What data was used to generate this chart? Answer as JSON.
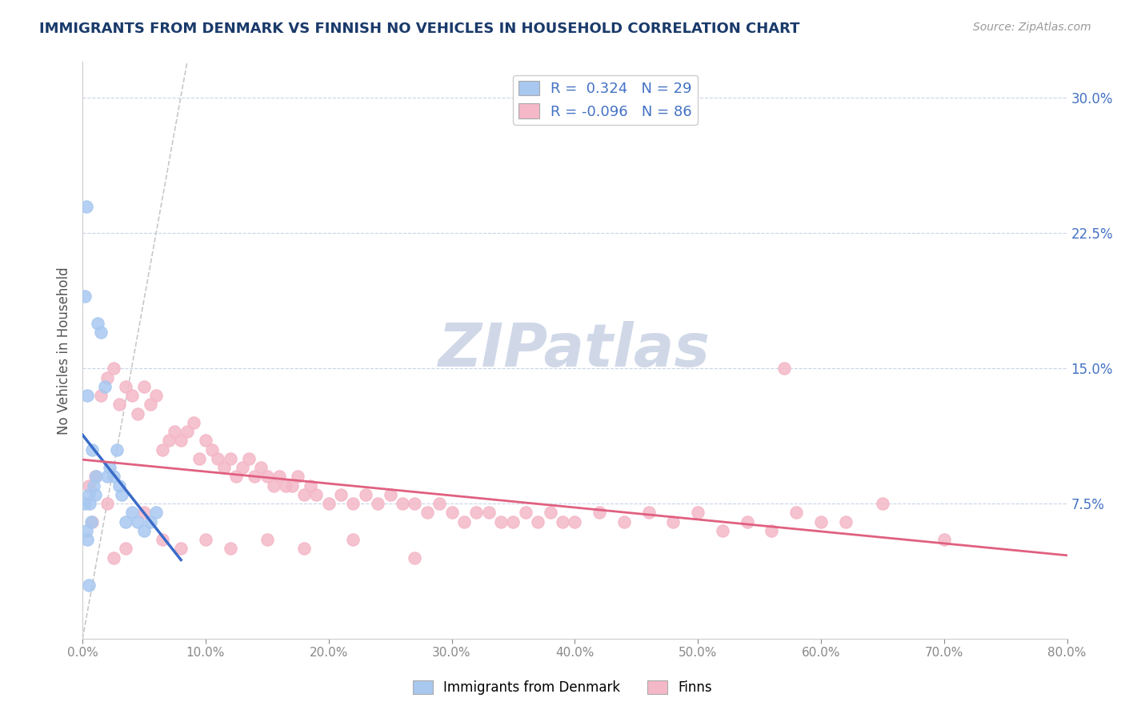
{
  "title": "IMMIGRANTS FROM DENMARK VS FINNISH NO VEHICLES IN HOUSEHOLD CORRELATION CHART",
  "source": "Source: ZipAtlas.com",
  "ylabel": "No Vehicles in Household",
  "x_tick_labels": [
    "0.0%",
    "10.0%",
    "20.0%",
    "30.0%",
    "40.0%",
    "50.0%",
    "60.0%",
    "70.0%",
    "80.0%"
  ],
  "x_tick_vals": [
    0.0,
    10.0,
    20.0,
    30.0,
    40.0,
    50.0,
    60.0,
    70.0,
    80.0
  ],
  "y_tick_labels": [
    "7.5%",
    "15.0%",
    "22.5%",
    "30.0%"
  ],
  "y_tick_vals": [
    7.5,
    15.0,
    22.5,
    30.0
  ],
  "xlim": [
    0,
    80
  ],
  "ylim": [
    0,
    32
  ],
  "R_blue": 0.324,
  "N_blue": 29,
  "R_pink": -0.096,
  "N_pink": 86,
  "blue_scatter_color": "#a8c8f0",
  "pink_scatter_color": "#f4b8c8",
  "blue_line_color": "#3a6bc8",
  "pink_line_color": "#e06080",
  "diag_line_color": "#c8c8c8",
  "watermark": "ZIPatlas",
  "watermark_color": "#d0d8e8",
  "legend_label_color": "#4472c4",
  "blue_x": [
    0.3,
    0.4,
    1.2,
    1.5,
    1.8,
    2.0,
    2.2,
    2.5,
    2.8,
    3.0,
    3.2,
    3.5,
    4.0,
    4.5,
    5.0,
    5.5,
    6.0,
    0.5,
    0.8,
    1.0,
    0.2,
    0.6,
    0.9,
    1.1,
    0.7,
    0.3,
    0.4,
    0.2,
    0.5
  ],
  "blue_y": [
    24.0,
    13.5,
    17.5,
    17.0,
    14.0,
    9.0,
    9.5,
    9.0,
    10.5,
    8.5,
    8.0,
    6.5,
    7.0,
    6.5,
    6.0,
    6.5,
    7.0,
    8.0,
    10.5,
    8.0,
    19.0,
    7.5,
    8.5,
    9.0,
    6.5,
    6.0,
    5.5,
    7.5,
    3.0
  ],
  "pink_x": [
    0.5,
    1.0,
    1.5,
    2.0,
    2.5,
    3.0,
    3.5,
    4.0,
    4.5,
    5.0,
    5.5,
    6.0,
    6.5,
    7.0,
    7.5,
    8.0,
    8.5,
    9.0,
    9.5,
    10.0,
    10.5,
    11.0,
    11.5,
    12.0,
    12.5,
    13.0,
    13.5,
    14.0,
    14.5,
    15.0,
    15.5,
    16.0,
    16.5,
    17.0,
    17.5,
    18.0,
    18.5,
    19.0,
    20.0,
    21.0,
    22.0,
    23.0,
    24.0,
    25.0,
    26.0,
    27.0,
    28.0,
    29.0,
    30.0,
    31.0,
    32.0,
    33.0,
    34.0,
    35.0,
    36.0,
    37.0,
    38.0,
    39.0,
    40.0,
    42.0,
    44.0,
    46.0,
    48.0,
    50.0,
    52.0,
    54.0,
    56.0,
    58.0,
    60.0,
    62.0,
    65.0,
    70.0,
    2.0,
    3.5,
    5.0,
    6.5,
    8.0,
    10.0,
    12.0,
    15.0,
    18.0,
    22.0,
    27.0,
    57.0,
    0.8,
    2.5
  ],
  "pink_y": [
    8.5,
    9.0,
    13.5,
    14.5,
    15.0,
    13.0,
    14.0,
    13.5,
    12.5,
    14.0,
    13.0,
    13.5,
    10.5,
    11.0,
    11.5,
    11.0,
    11.5,
    12.0,
    10.0,
    11.0,
    10.5,
    10.0,
    9.5,
    10.0,
    9.0,
    9.5,
    10.0,
    9.0,
    9.5,
    9.0,
    8.5,
    9.0,
    8.5,
    8.5,
    9.0,
    8.0,
    8.5,
    8.0,
    7.5,
    8.0,
    7.5,
    8.0,
    7.5,
    8.0,
    7.5,
    7.5,
    7.0,
    7.5,
    7.0,
    6.5,
    7.0,
    7.0,
    6.5,
    6.5,
    7.0,
    6.5,
    7.0,
    6.5,
    6.5,
    7.0,
    6.5,
    7.0,
    6.5,
    7.0,
    6.0,
    6.5,
    6.0,
    7.0,
    6.5,
    6.5,
    7.5,
    5.5,
    7.5,
    5.0,
    7.0,
    5.5,
    5.0,
    5.5,
    5.0,
    5.5,
    5.0,
    5.5,
    4.5,
    15.0,
    6.5,
    4.5
  ]
}
